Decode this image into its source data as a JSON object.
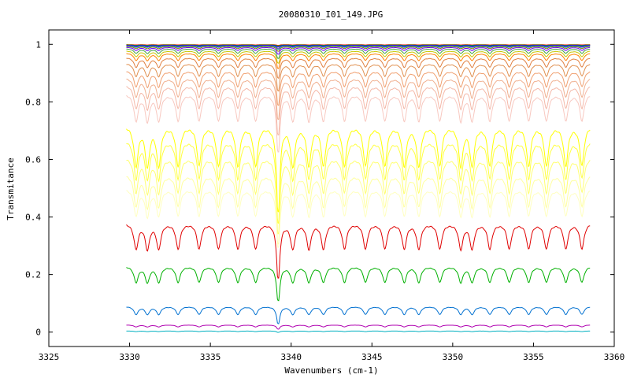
{
  "chart_data": {
    "type": "line",
    "title": "20080310_I01_149.JPG",
    "xlabel": "Wavenumbers (cm-1)",
    "ylabel": "Transmitance",
    "xlim": [
      3325,
      3360
    ],
    "ylim": [
      -0.05,
      1.05
    ],
    "x_ticks": [
      3325,
      3330,
      3335,
      3340,
      3345,
      3350,
      3355,
      3360
    ],
    "y_ticks": [
      0,
      0.2,
      0.4,
      0.6,
      0.8,
      1
    ],
    "x_tick_labels": [
      "3325",
      "3330",
      "3335",
      "3340",
      "3345",
      "3350",
      "3355",
      "3360"
    ],
    "y_tick_labels": [
      "0",
      "0.2",
      "0.4",
      "0.6",
      "0.8",
      "1"
    ],
    "grid": false,
    "legend": "none",
    "x_range_data": [
      3329.8,
      3358.5
    ],
    "absorption_line_positions": [
      3330.4,
      3331.1,
      3331.8,
      3333.0,
      3334.3,
      3335.5,
      3336.7,
      3337.8,
      3339.2,
      3340.1,
      3341.1,
      3342.0,
      3343.3,
      3344.6,
      3345.8,
      3347.0,
      3347.9,
      3349.2,
      3350.5,
      3351.2,
      3352.3,
      3353.5,
      3354.7,
      3355.8,
      3357.0,
      3358.0
    ],
    "series": [
      {
        "color": "#ff0000",
        "baseline": 0.999,
        "depth": 0.002
      },
      {
        "color": "#00c800",
        "baseline": 0.998,
        "depth": 0.003
      },
      {
        "color": "#0000ff",
        "baseline": 0.997,
        "depth": 0.005
      },
      {
        "color": "#b000b0",
        "baseline": 0.996,
        "depth": 0.008
      },
      {
        "color": "#00a0c0",
        "baseline": 0.995,
        "depth": 0.01
      },
      {
        "color": "#808000",
        "baseline": 0.993,
        "depth": 0.014
      },
      {
        "color": "#7000ff",
        "baseline": 0.99,
        "depth": 0.02
      },
      {
        "color": "#40a040",
        "baseline": 0.985,
        "depth": 0.028
      },
      {
        "color": "#c8c800",
        "baseline": 0.978,
        "depth": 0.036
      },
      {
        "color": "#ff8000",
        "baseline": 0.97,
        "depth": 0.045
      },
      {
        "color": "#e08040",
        "baseline": 0.955,
        "depth": 0.06
      },
      {
        "color": "#e09050",
        "baseline": 0.935,
        "depth": 0.08
      },
      {
        "color": "#f0a070",
        "baseline": 0.91,
        "depth": 0.1
      },
      {
        "color": "#f0b090",
        "baseline": 0.885,
        "depth": 0.12
      },
      {
        "color": "#f4b8a8",
        "baseline": 0.86,
        "depth": 0.145
      },
      {
        "color": "#f8c8c0",
        "baseline": 0.83,
        "depth": 0.17
      },
      {
        "color": "#ffff00",
        "baseline": 0.72,
        "depth": 0.25
      },
      {
        "color": "#ffff40",
        "baseline": 0.67,
        "depth": 0.24
      },
      {
        "color": "#ffff70",
        "baseline": 0.61,
        "depth": 0.22
      },
      {
        "color": "#ffffa0",
        "baseline": 0.55,
        "depth": 0.2
      },
      {
        "color": "#ffffc0",
        "baseline": 0.5,
        "depth": 0.17
      },
      {
        "color": "#e00000",
        "baseline": 0.38,
        "depth": 0.16
      },
      {
        "color": "#00b000",
        "baseline": 0.23,
        "depth": 0.1
      },
      {
        "color": "#0070d0",
        "baseline": 0.09,
        "depth": 0.05
      },
      {
        "color": "#b000b0",
        "baseline": 0.025,
        "depth": 0.012
      },
      {
        "color": "#00b0c0",
        "baseline": 0.004,
        "depth": 0.004
      }
    ]
  }
}
